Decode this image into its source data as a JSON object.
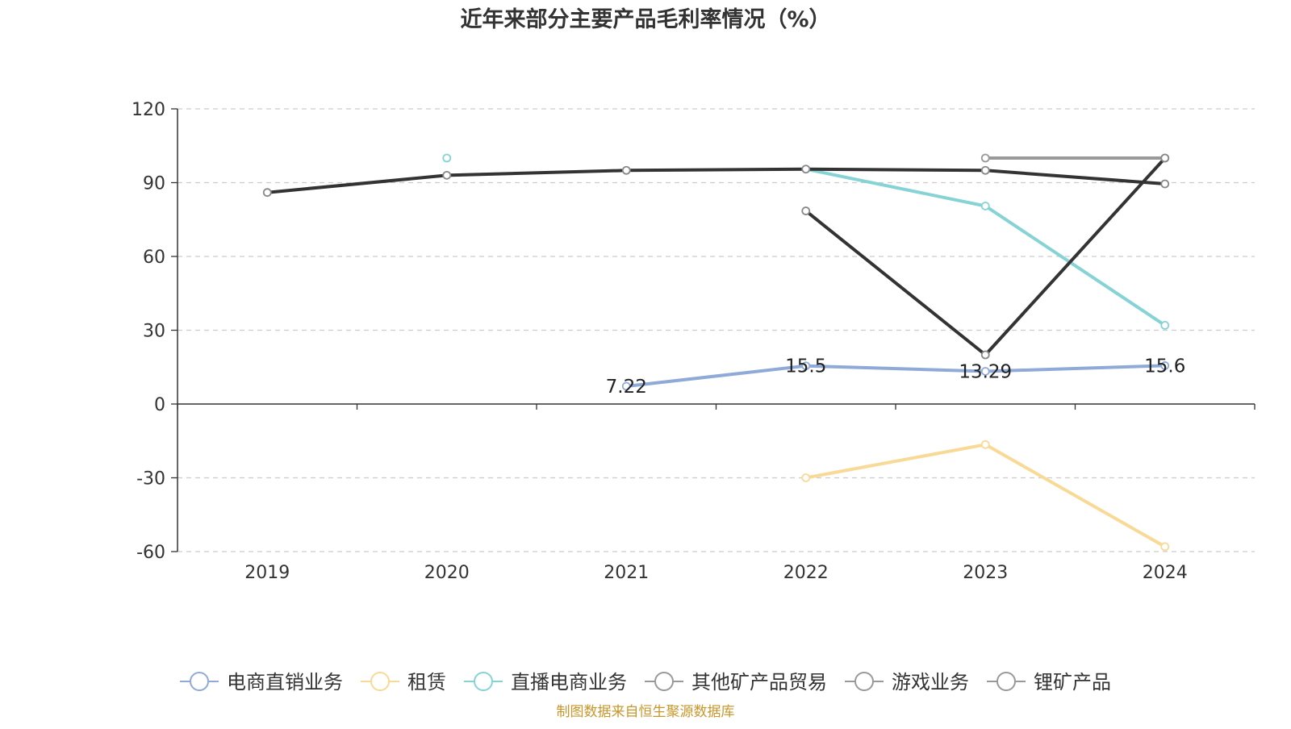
{
  "chart_data": {
    "type": "line",
    "title": "近年来部分主要产品毛利率情况（%）",
    "categories": [
      "2019",
      "2020",
      "2021",
      "2022",
      "2023",
      "2024"
    ],
    "ylim": [
      -60,
      120
    ],
    "yticks": [
      -60,
      -30,
      0,
      30,
      60,
      90,
      120
    ],
    "grid": true,
    "legend_position": "bottom",
    "series": [
      {
        "name": "电商直销业务",
        "color": "#8faad8",
        "values": [
          null,
          null,
          7.22,
          15.5,
          13.29,
          15.6
        ],
        "labels": [
          null,
          null,
          "7.22",
          "15.5",
          "13.29",
          "15.6"
        ]
      },
      {
        "name": "租赁",
        "color": "#f9d996",
        "values": [
          null,
          null,
          null,
          -30,
          -16.5,
          -58
        ]
      },
      {
        "name": "直播电商业务",
        "color": "#86d3d6",
        "values": [
          null,
          100,
          null,
          95.5,
          80.5,
          32
        ]
      },
      {
        "name": "其他矿产品贸易",
        "color": "#333333",
        "values": [
          86,
          93,
          95,
          95.5,
          95,
          89.5
        ]
      },
      {
        "name": "游戏业务",
        "color": "#999999",
        "values": [
          null,
          null,
          null,
          null,
          100,
          100
        ]
      },
      {
        "name": "锂矿产品",
        "color": "#333333",
        "values": [
          null,
          null,
          null,
          78.5,
          20,
          100
        ]
      }
    ]
  },
  "legend_items": [
    {
      "label": "电商直销业务",
      "color": "#8faad8"
    },
    {
      "label": "租赁",
      "color": "#f9d996"
    },
    {
      "label": "直播电商业务",
      "color": "#86d3d6"
    },
    {
      "label": "其他矿产品贸易",
      "color": "#999999"
    },
    {
      "label": "游戏业务",
      "color": "#999999"
    },
    {
      "label": "锂矿产品",
      "color": "#999999"
    }
  ],
  "source_note": "制图数据来自恒生聚源数据库"
}
